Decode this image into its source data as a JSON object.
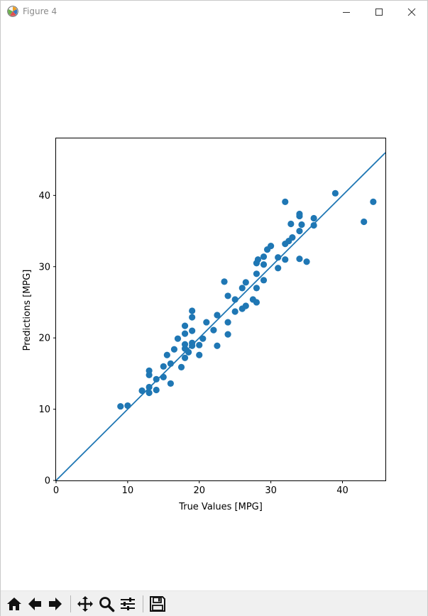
{
  "window": {
    "title": "Figure 4",
    "app_icon": "matplotlib-icon",
    "controls": [
      "minimize-icon",
      "maximize-icon",
      "close-icon"
    ]
  },
  "toolbar": {
    "tools": [
      "home-icon",
      "back-arrow-icon",
      "forward-arrow-icon",
      "pan-icon",
      "zoom-icon",
      "configure-subplots-icon",
      "save-icon"
    ]
  },
  "chart_data": {
    "type": "scatter",
    "title": "",
    "xlabel": "True Values [MPG]",
    "ylabel": "Predictions [MPG]",
    "xlim": [
      0,
      46
    ],
    "ylim": [
      0,
      48
    ],
    "xticks": [
      "0",
      "10",
      "20",
      "30",
      "40"
    ],
    "yticks": [
      "0",
      "10",
      "20",
      "30",
      "40"
    ],
    "grid": false,
    "legend": "none",
    "point_color": "#1f77b4",
    "line_color": "#1f77b4",
    "reference_line": {
      "x": [
        0,
        46
      ],
      "y": [
        0,
        46
      ]
    },
    "points": [
      [
        9.0,
        10.4
      ],
      [
        10.0,
        10.5
      ],
      [
        12.0,
        12.6
      ],
      [
        13.0,
        12.3
      ],
      [
        13.0,
        13.1
      ],
      [
        13.0,
        14.8
      ],
      [
        13.0,
        15.4
      ],
      [
        14.0,
        12.7
      ],
      [
        14.0,
        14.2
      ],
      [
        15.0,
        14.5
      ],
      [
        15.0,
        16.0
      ],
      [
        15.5,
        17.6
      ],
      [
        16.0,
        13.6
      ],
      [
        16.0,
        16.4
      ],
      [
        16.5,
        18.4
      ],
      [
        17.0,
        19.9
      ],
      [
        17.5,
        15.9
      ],
      [
        18.0,
        17.2
      ],
      [
        18.0,
        18.5
      ],
      [
        18.0,
        19.1
      ],
      [
        18.0,
        20.6
      ],
      [
        18.0,
        21.7
      ],
      [
        18.5,
        18.0
      ],
      [
        19.0,
        18.9
      ],
      [
        19.0,
        19.3
      ],
      [
        19.0,
        21.0
      ],
      [
        19.0,
        22.9
      ],
      [
        19.0,
        23.8
      ],
      [
        20.0,
        17.6
      ],
      [
        20.0,
        19.0
      ],
      [
        20.5,
        19.9
      ],
      [
        21.0,
        22.2
      ],
      [
        22.0,
        21.1
      ],
      [
        22.5,
        18.9
      ],
      [
        22.5,
        23.2
      ],
      [
        23.5,
        27.9
      ],
      [
        24.0,
        25.9
      ],
      [
        24.0,
        22.2
      ],
      [
        24.0,
        20.5
      ],
      [
        25.0,
        25.4
      ],
      [
        25.0,
        23.7
      ],
      [
        26.0,
        24.1
      ],
      [
        26.0,
        27.0
      ],
      [
        26.5,
        24.5
      ],
      [
        26.5,
        27.8
      ],
      [
        27.5,
        25.4
      ],
      [
        28.0,
        25.0
      ],
      [
        28.0,
        27.0
      ],
      [
        28.0,
        29.0
      ],
      [
        28.0,
        30.5
      ],
      [
        28.2,
        31.0
      ],
      [
        29.0,
        28.1
      ],
      [
        29.0,
        30.3
      ],
      [
        29.0,
        31.4
      ],
      [
        29.5,
        32.4
      ],
      [
        30.0,
        32.9
      ],
      [
        31.0,
        29.8
      ],
      [
        31.0,
        31.3
      ],
      [
        32.0,
        33.2
      ],
      [
        32.0,
        31.0
      ],
      [
        32.0,
        39.1
      ],
      [
        32.5,
        33.6
      ],
      [
        33.0,
        34.1
      ],
      [
        32.8,
        36.0
      ],
      [
        34.0,
        31.1
      ],
      [
        34.0,
        35.0
      ],
      [
        34.0,
        37.1
      ],
      [
        34.0,
        37.4
      ],
      [
        34.3,
        35.9
      ],
      [
        35.0,
        30.7
      ],
      [
        36.0,
        35.8
      ],
      [
        36.0,
        36.8
      ],
      [
        39.0,
        40.3
      ],
      [
        43.0,
        36.3
      ],
      [
        44.3,
        39.1
      ]
    ]
  }
}
